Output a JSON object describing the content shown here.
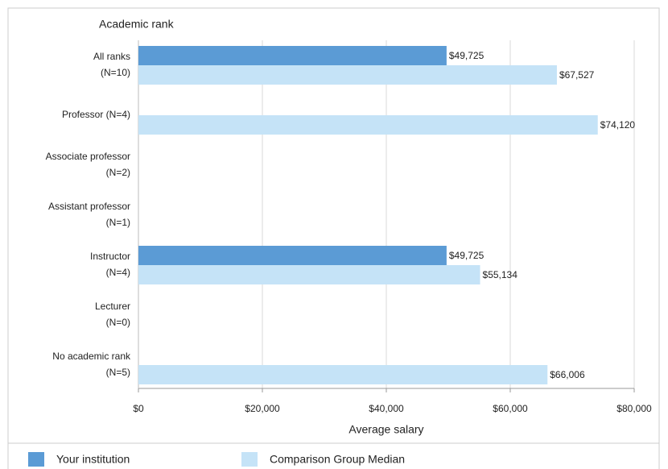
{
  "chart_data": {
    "type": "bar",
    "orientation": "horizontal",
    "y_axis_title": "Academic rank",
    "x_axis_title": "Average salary",
    "categories": [
      [
        "All ranks",
        "(N=10)"
      ],
      [
        "Professor (N=4)"
      ],
      [
        "Associate professor",
        "(N=2)"
      ],
      [
        "Assistant professor",
        "(N=1)"
      ],
      [
        "Instructor",
        "(N=4)"
      ],
      [
        "Lecturer",
        "(N=0)"
      ],
      [
        "No academic rank",
        "(N=5)"
      ]
    ],
    "series": [
      {
        "name": "Your institution",
        "color": "#5b9bd5",
        "values": [
          49725,
          null,
          null,
          null,
          49725,
          null,
          null
        ],
        "value_labels": [
          "$49,725",
          null,
          null,
          null,
          "$49,725",
          null,
          null
        ]
      },
      {
        "name": "Comparison Group Median",
        "color": "#c5e3f7",
        "values": [
          67527,
          74120,
          null,
          null,
          55134,
          null,
          66006
        ],
        "value_labels": [
          "$67,527",
          "$74,120",
          null,
          null,
          "$55,134",
          null,
          "$66,006"
        ]
      }
    ],
    "xlim": [
      0,
      80000
    ],
    "xticks": [
      {
        "value": 0,
        "label": "$0"
      },
      {
        "value": 20000,
        "label": "$20,000"
      },
      {
        "value": 40000,
        "label": "$40,000"
      },
      {
        "value": 60000,
        "label": "$60,000"
      },
      {
        "value": 80000,
        "label": "$80,000"
      }
    ],
    "grid": true,
    "legend": "bottom"
  }
}
